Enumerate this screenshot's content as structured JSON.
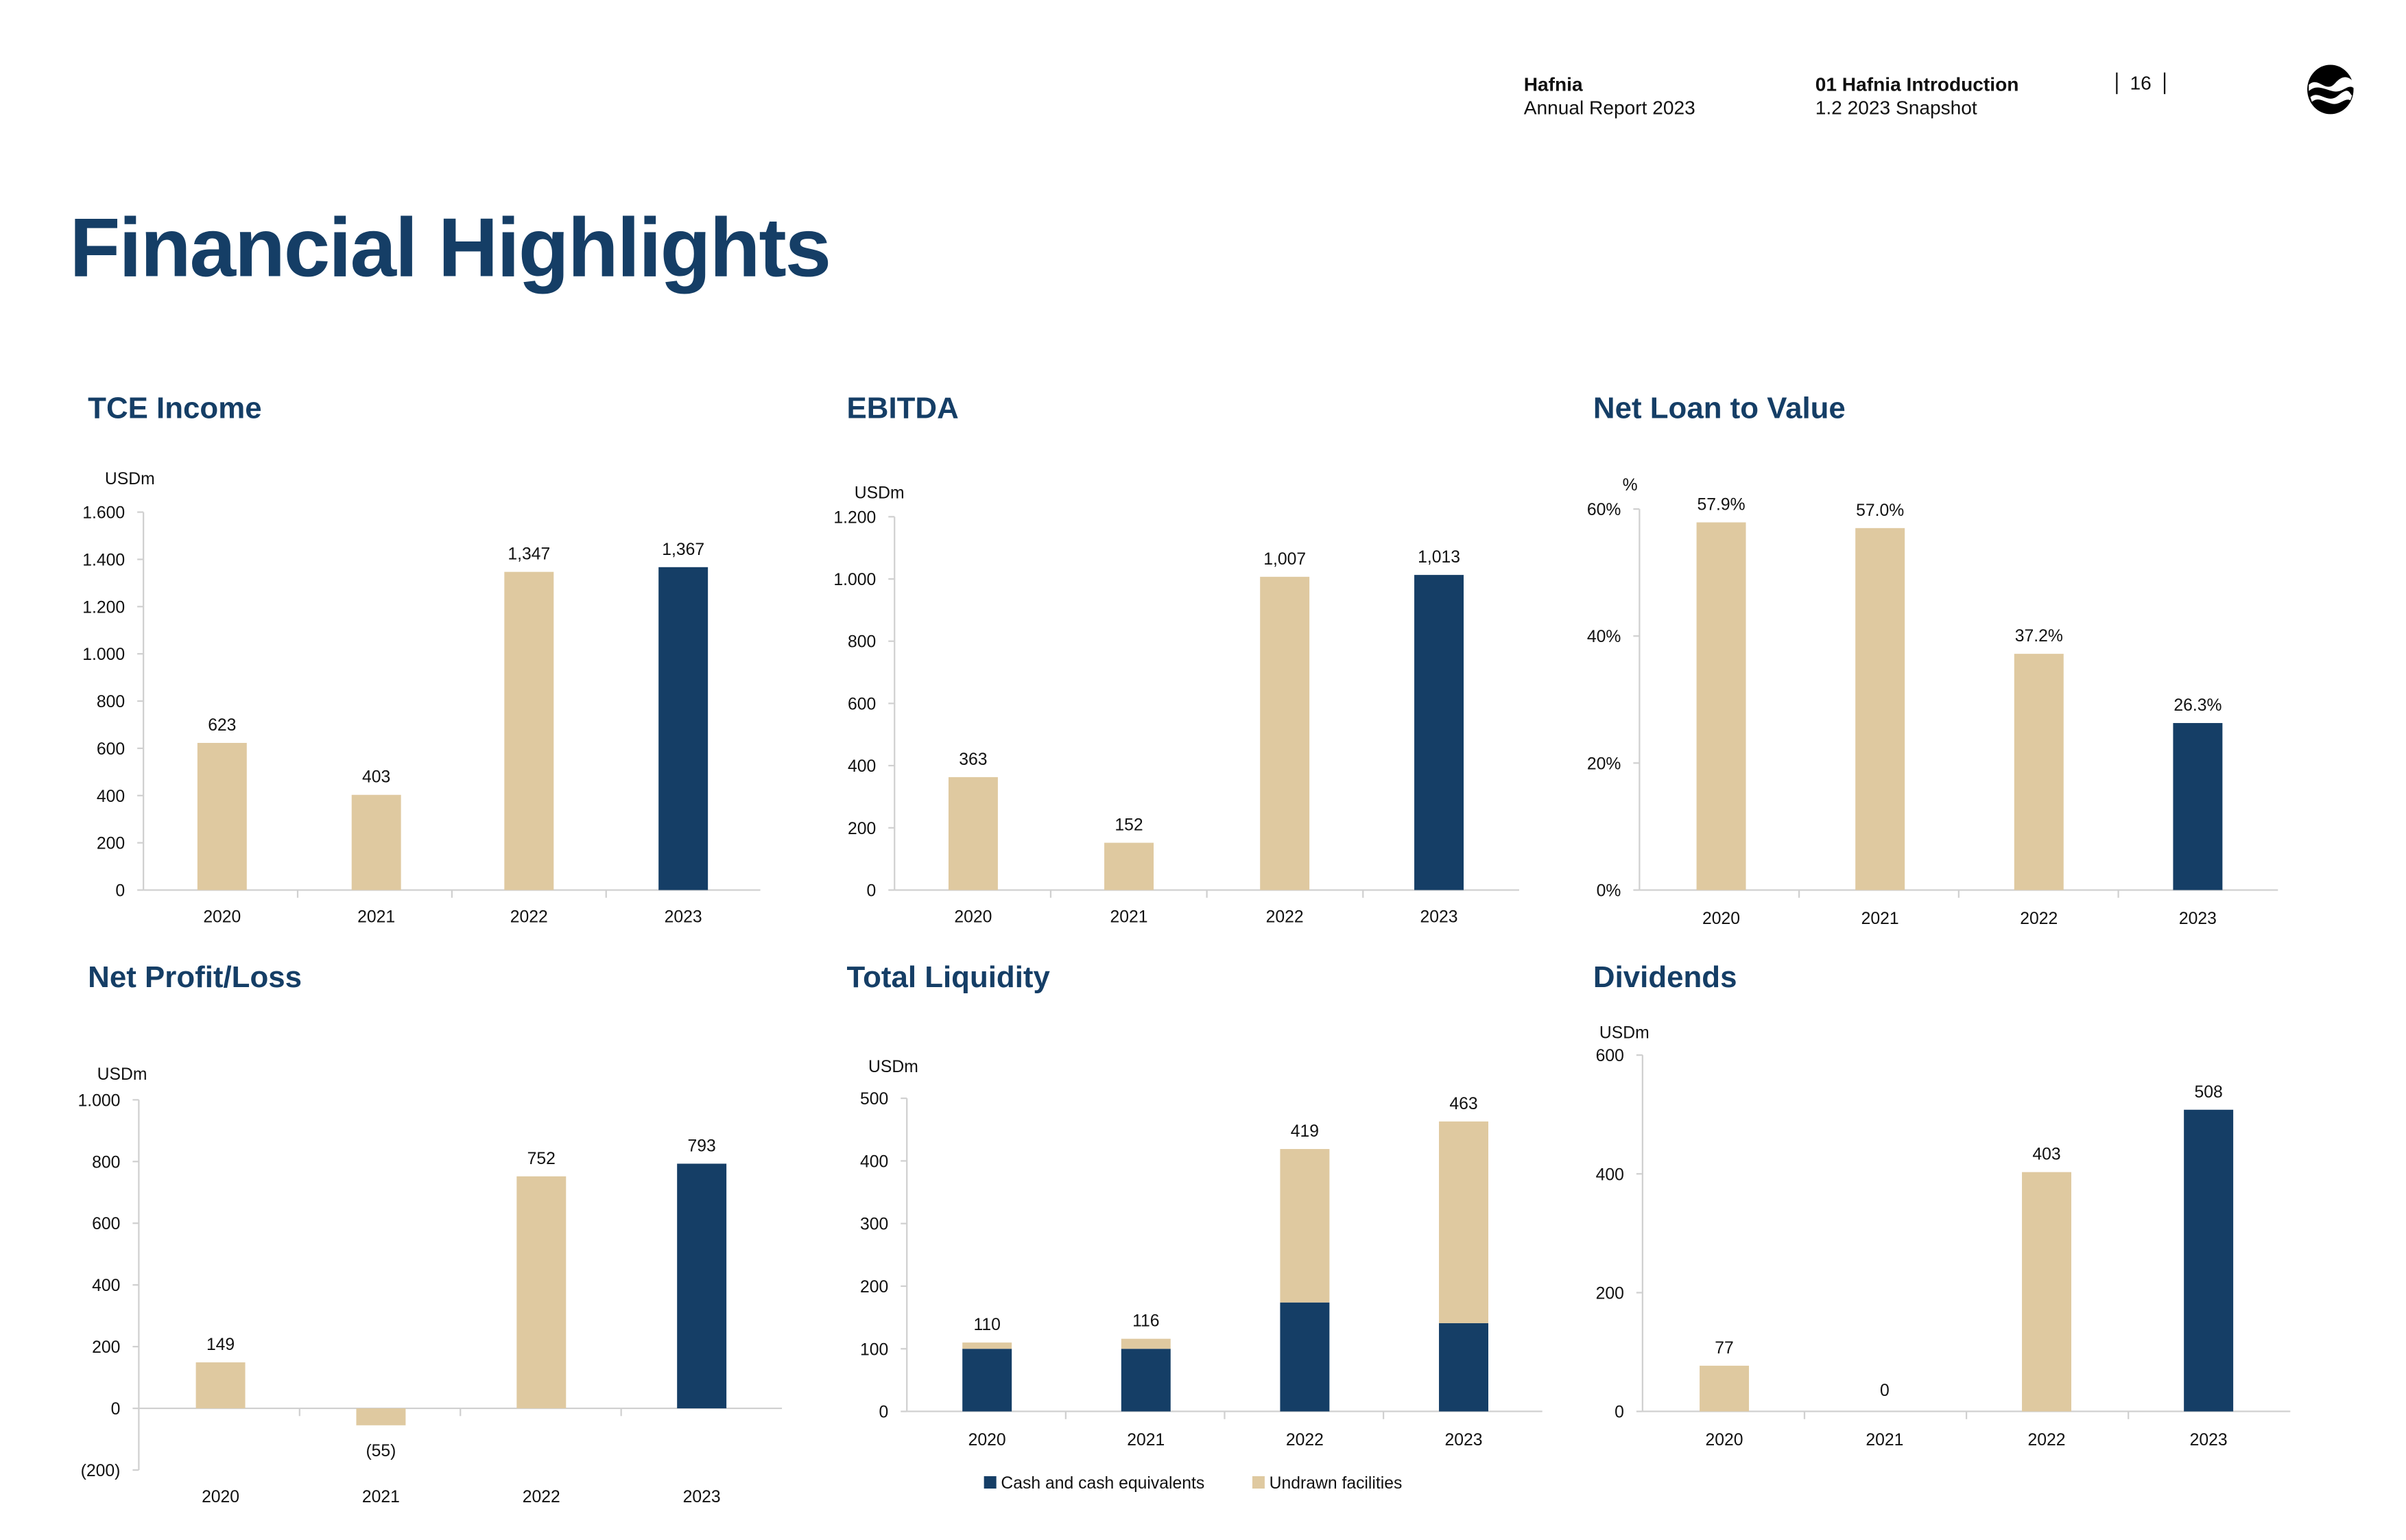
{
  "header": {
    "company": "Hafnia",
    "report": "Annual Report 2023",
    "section": "01 Hafnia Introduction",
    "subsection": "1.2 2023 Snapshot",
    "page": "16"
  },
  "page_title": "Financial Highlights",
  "colors": {
    "tan": "#dfc9a0",
    "navy": "#153e66",
    "title": "#153e66"
  },
  "chart_data": [
    {
      "type": "bar",
      "title": "TCE Income",
      "unit": "USDm",
      "categories": [
        "2020",
        "2021",
        "2022",
        "2023"
      ],
      "values": [
        623,
        403,
        1347,
        1367
      ],
      "labels": [
        "623",
        "403",
        "1,347",
        "1,367"
      ],
      "ylim": [
        0,
        1600
      ],
      "yticks": [
        0,
        200,
        400,
        600,
        800,
        1000,
        1200,
        1400,
        1600
      ],
      "ytick_labels": [
        "0",
        "200",
        "400",
        "600",
        "800",
        "1.000",
        "1.200",
        "1.400",
        "1.600"
      ],
      "highlight": "2023"
    },
    {
      "type": "bar",
      "title": "EBITDA",
      "unit": "USDm",
      "categories": [
        "2020",
        "2021",
        "2022",
        "2023"
      ],
      "values": [
        363,
        152,
        1007,
        1013
      ],
      "labels": [
        "363",
        "152",
        "1,007",
        "1,013"
      ],
      "ylim": [
        0,
        1200
      ],
      "yticks": [
        0,
        200,
        400,
        600,
        800,
        1000,
        1200
      ],
      "ytick_labels": [
        "0",
        "200",
        "400",
        "600",
        "800",
        "1.000",
        "1.200"
      ],
      "highlight": "2023"
    },
    {
      "type": "bar",
      "title": "Net Loan to Value",
      "unit": "%",
      "categories": [
        "2020",
        "2021",
        "2022",
        "2023"
      ],
      "values": [
        57.9,
        57.0,
        37.2,
        26.3
      ],
      "labels": [
        "57.9%",
        "57.0%",
        "37.2%",
        "26.3%"
      ],
      "ylim": [
        0,
        60
      ],
      "yticks": [
        0,
        20,
        40,
        60
      ],
      "ytick_labels": [
        "0%",
        "20%",
        "40%",
        "60%"
      ],
      "highlight": "2023"
    },
    {
      "type": "bar",
      "title": "Net Profit/Loss",
      "unit": "USDm",
      "categories": [
        "2020",
        "2021",
        "2022",
        "2023"
      ],
      "values": [
        149,
        -55,
        752,
        793
      ],
      "labels": [
        "149",
        "(55)",
        "752",
        "793"
      ],
      "ylim": [
        -200,
        1000
      ],
      "yticks": [
        -200,
        0,
        200,
        400,
        600,
        800,
        1000
      ],
      "ytick_labels": [
        "(200)",
        "0",
        "200",
        "400",
        "600",
        "800",
        "1.000"
      ],
      "highlight": "2023"
    },
    {
      "type": "bar",
      "stacked": true,
      "title": "Total Liquidity",
      "unit": "USDm",
      "categories": [
        "2020",
        "2021",
        "2022",
        "2023"
      ],
      "series": [
        {
          "name": "Cash and cash equivalents",
          "values": [
            100,
            100,
            174,
            141
          ],
          "color": "#153e66"
        },
        {
          "name": "Undrawn facilities",
          "values": [
            10,
            16,
            245,
            322
          ],
          "color": "#dfc9a0"
        }
      ],
      "labels": [
        "110",
        "116",
        "419",
        "463"
      ],
      "ylim": [
        0,
        500
      ],
      "yticks": [
        0,
        100,
        200,
        300,
        400,
        500
      ],
      "ytick_labels": [
        "0",
        "100",
        "200",
        "300",
        "400",
        "500"
      ],
      "legend": "bottom"
    },
    {
      "type": "bar",
      "title": "Dividends",
      "unit": "USDm",
      "categories": [
        "2020",
        "2021",
        "2022",
        "2023"
      ],
      "values": [
        77,
        0,
        403,
        508
      ],
      "labels": [
        "77",
        "0",
        "403",
        "508"
      ],
      "ylim": [
        0,
        600
      ],
      "yticks": [
        0,
        200,
        400,
        600
      ],
      "ytick_labels": [
        "0",
        "200",
        "400",
        "600"
      ],
      "highlight": "2023"
    }
  ]
}
